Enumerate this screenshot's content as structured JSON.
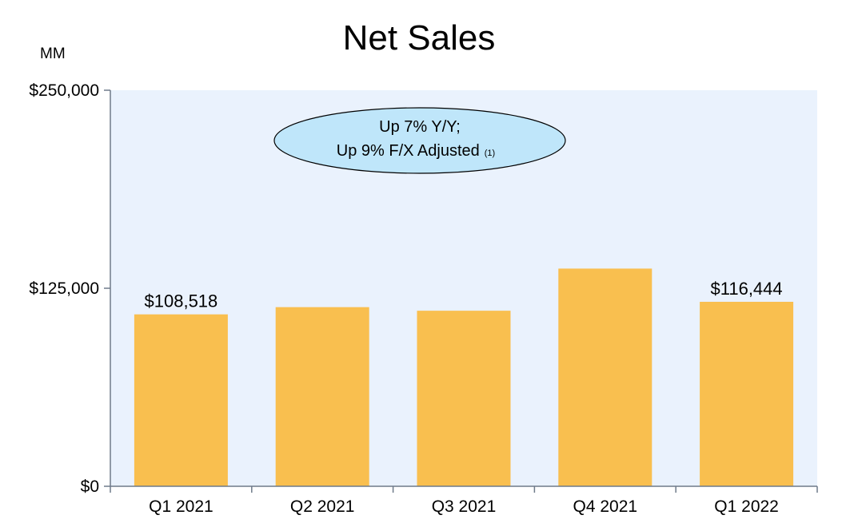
{
  "chart_data": {
    "type": "bar",
    "title": "Net Sales",
    "unit_label": "MM",
    "categories": [
      "Q1 2021",
      "Q2 2021",
      "Q3 2021",
      "Q4 2021",
      "Q1 2022"
    ],
    "values": [
      108518,
      113080,
      110812,
      137412,
      116444
    ],
    "data_labels": [
      "$108,518",
      "",
      "",
      "",
      "$116,444"
    ],
    "ylim": [
      0,
      250000
    ],
    "yticks": [
      0,
      125000,
      250000
    ],
    "ytick_labels": [
      "$0",
      "$125,000",
      "$250,000"
    ],
    "grid": false,
    "legend": "none",
    "annotation": {
      "line1": "Up 7% Y/Y;",
      "line2": "Up 9% F/X Adjusted",
      "note": "(1)"
    },
    "colors": {
      "bar": "#F9BF4F",
      "plot_background": "#EAF2FD",
      "callout_fill": "#BFE6FA",
      "axis": "#6F7B8A"
    }
  }
}
